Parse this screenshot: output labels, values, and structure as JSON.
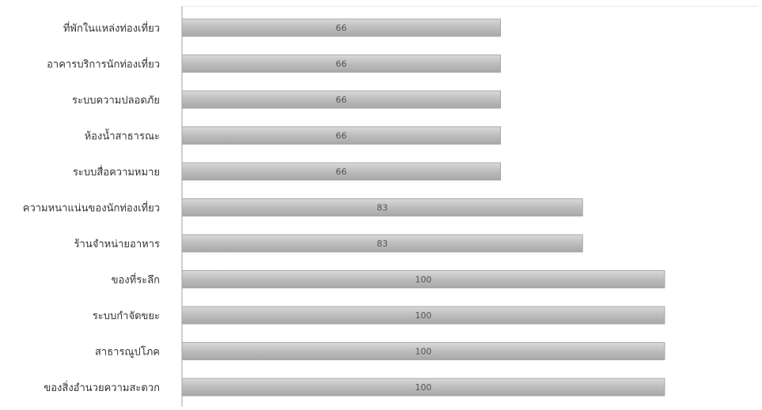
{
  "chart_data": {
    "type": "bar",
    "orientation": "horizontal",
    "title": "",
    "xlabel": "",
    "ylabel": "",
    "xlim": [
      0,
      117
    ],
    "grid": false,
    "legend": "none",
    "categories": [
      "ที่พักในแหล่งท่องเที่ยว",
      "อาคารบริการนักท่องเที่ยว",
      "ระบบความปลอดภัย",
      "ห้องน้ำสาธารณะ",
      "ระบบสื่อความหมาย",
      "ความหนาแน่นของนักท่องเที่ยว",
      "ร้านจำหน่ายอาหาร",
      "ของที่ระลึก",
      "ระบบกำจัดขยะ",
      "สาธารณูปโภค",
      "ของสิ่งอำนวยความสะดวก"
    ],
    "values": [
      66,
      66,
      66,
      66,
      66,
      83,
      83,
      100,
      100,
      100,
      100
    ],
    "data_labels": [
      "66",
      "66",
      "66",
      "66",
      "66",
      "83",
      "83",
      "100",
      "100",
      "100",
      "100"
    ],
    "colors": {
      "bar_fill": "#bdbdbd",
      "bar_stroke": "#9e9e9e",
      "axis": "#a0a0a0",
      "frame": "#e6e6e6"
    }
  }
}
